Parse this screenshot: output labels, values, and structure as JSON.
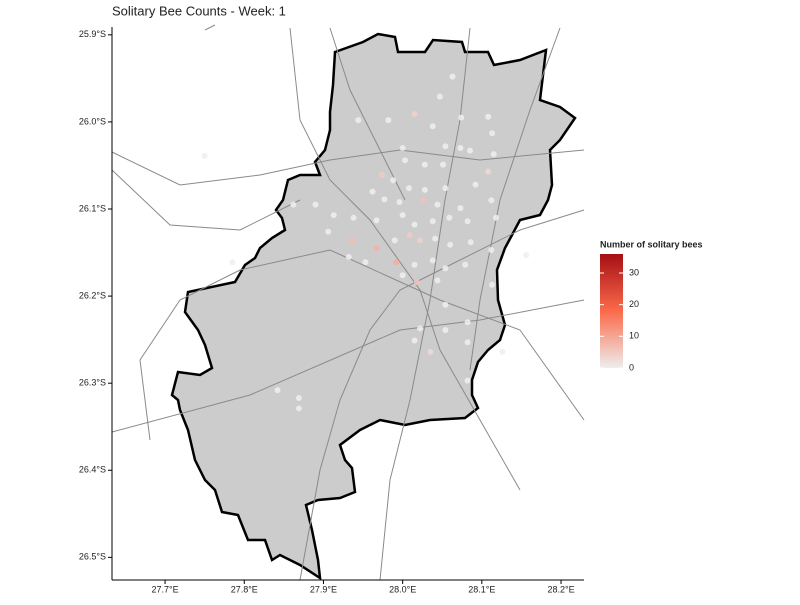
{
  "chart_data": {
    "type": "scatter-map",
    "title": "Solitary Bee Counts - Week: 1",
    "legend_title": "Number of solitary bees",
    "xlim": [
      27.633,
      28.229
    ],
    "ylim": [
      -26.526,
      -25.891
    ],
    "xticks": [
      {
        "value": 27.7,
        "label": "27.7°E"
      },
      {
        "value": 27.8,
        "label": "27.8°E"
      },
      {
        "value": 27.9,
        "label": "27.9°E"
      },
      {
        "value": 28.0,
        "label": "28.0°E"
      },
      {
        "value": 28.1,
        "label": "28.1°E"
      },
      {
        "value": 28.2,
        "label": "28.2°E"
      }
    ],
    "yticks": [
      {
        "value": -25.9,
        "label": "25.9°S"
      },
      {
        "value": -26.0,
        "label": "26.0°S"
      },
      {
        "value": -26.1,
        "label": "26.1°S"
      },
      {
        "value": -26.2,
        "label": "26.2°S"
      },
      {
        "value": -26.3,
        "label": "26.3°S"
      },
      {
        "value": -26.4,
        "label": "26.4°S"
      },
      {
        "value": -26.5,
        "label": "26.5°S"
      }
    ],
    "color_range": [
      0,
      36
    ],
    "color_ticks": [
      0,
      10,
      20,
      30
    ],
    "colors": [
      "#eeeeee",
      "#fb6a4a",
      "#a50f15"
    ],
    "lon": [
      28.063,
      28.047,
      27.944,
      27.982,
      28.015,
      28.038,
      28.074,
      28.108,
      28.113,
      28.0,
      28.054,
      28.073,
      28.085,
      28.115,
      28.003,
      28.028,
      28.051,
      27.974,
      27.988,
      28.008,
      28.028,
      28.054,
      28.108,
      28.092,
      27.962,
      27.977,
      27.996,
      28.026,
      28.044,
      28.073,
      28.112,
      27.89,
      27.862,
      27.913,
      27.938,
      27.967,
      28.0,
      28.015,
      28.038,
      28.059,
      28.082,
      28.118,
      27.906,
      27.936,
      27.967,
      27.99,
      28.009,
      28.022,
      28.041,
      28.06,
      28.086,
      28.112,
      28.156,
      27.785,
      27.932,
      27.953,
      27.992,
      28.015,
      28.038,
      28.054,
      28.079,
      28.0,
      28.018,
      28.044,
      28.113,
      28.054,
      28.022,
      28.054,
      28.082,
      28.015,
      28.082,
      28.035,
      28.126,
      28.082,
      27.842,
      27.869,
      27.869,
      27.75
    ],
    "lat": [
      -25.948,
      -25.971,
      -25.998,
      -25.998,
      -25.991,
      -26.005,
      -25.995,
      -25.994,
      -26.013,
      -26.03,
      -26.028,
      -26.03,
      -26.033,
      -26.037,
      -26.044,
      -26.049,
      -26.049,
      -26.061,
      -26.067,
      -26.076,
      -26.078,
      -26.076,
      -26.057,
      -26.072,
      -26.08,
      -26.089,
      -26.092,
      -26.09,
      -26.095,
      -26.099,
      -26.09,
      -26.095,
      -26.095,
      -26.107,
      -26.11,
      -26.113,
      -26.107,
      -26.118,
      -26.114,
      -26.11,
      -26.114,
      -26.11,
      -26.126,
      -26.136,
      -26.145,
      -26.136,
      -26.13,
      -26.136,
      -26.134,
      -26.141,
      -26.138,
      -26.147,
      -26.153,
      -26.161,
      -26.155,
      -26.161,
      -26.161,
      -26.164,
      -26.159,
      -26.168,
      -26.164,
      -26.176,
      -26.184,
      -26.182,
      -26.187,
      -26.21,
      -26.237,
      -26.239,
      -26.23,
      -26.251,
      -26.253,
      -26.264,
      -26.264,
      -26.297,
      -26.308,
      -26.317,
      -26.329,
      -26.039
    ],
    "count": [
      0,
      0,
      0,
      0,
      4,
      0,
      0,
      0,
      0,
      0,
      0,
      0,
      0,
      0,
      0,
      0,
      0,
      5,
      0,
      0,
      0,
      0,
      3,
      0,
      0,
      0,
      0,
      6,
      0,
      0,
      0,
      0,
      0,
      0,
      0,
      0,
      0,
      0,
      0,
      0,
      0,
      0,
      0,
      7,
      8,
      0,
      5,
      4,
      0,
      0,
      0,
      0,
      0,
      0,
      0,
      0,
      9,
      0,
      0,
      0,
      0,
      0,
      6,
      0,
      0,
      0,
      0,
      0,
      0,
      0,
      0,
      3,
      0,
      0,
      0,
      0,
      0,
      0
    ]
  }
}
